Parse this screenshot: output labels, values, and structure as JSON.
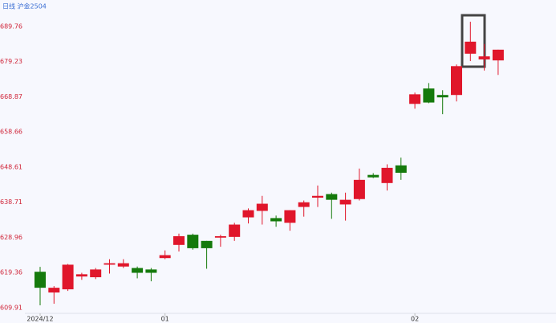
{
  "chart_data": {
    "type": "candlestick",
    "title": "日线 沪金2504",
    "categories": [
      "2024/12",
      null,
      null,
      null,
      null,
      null,
      null,
      null,
      null,
      "01",
      null,
      null,
      null,
      null,
      null,
      null,
      null,
      null,
      null,
      null,
      null,
      null,
      null,
      null,
      null,
      null,
      null,
      "02",
      null,
      null,
      null,
      null,
      null,
      null
    ],
    "open": [
      619.58,
      613.99,
      614.84,
      618.3,
      618.1,
      621.5,
      621.0,
      620.6,
      620.2,
      623.3,
      626.9,
      629.7,
      628.0,
      628.9,
      629.1,
      634.5,
      636.3,
      634.3,
      633.0,
      637.4,
      640.0,
      641.0,
      638.1,
      639.6,
      646.4,
      644.1,
      649.1,
      666.8,
      671.3,
      669.4,
      669.4,
      681.6,
      679.9,
      679.6
    ],
    "high": [
      620.9,
      615.7,
      621.7,
      619.3,
      620.6,
      623.0,
      623.0,
      621.0,
      620.6,
      625.4,
      630.0,
      630.0,
      628.0,
      629.7,
      633.0,
      637.0,
      640.5,
      635.0,
      636.5,
      639.2,
      643.4,
      641.4,
      641.4,
      648.2,
      646.9,
      649.4,
      651.3,
      670.1,
      672.9,
      670.8,
      678.4,
      691.2,
      684.5,
      682.8
    ],
    "low": [
      610.55,
      610.98,
      614.4,
      617.4,
      617.6,
      619.1,
      620.6,
      617.8,
      617.0,
      623.0,
      625.1,
      625.6,
      620.4,
      626.4,
      628.0,
      632.8,
      632.5,
      631.9,
      630.8,
      634.7,
      637.4,
      634.1,
      633.6,
      639.2,
      645.5,
      642.0,
      645.0,
      665.4,
      667.0,
      663.8,
      667.5,
      679.4,
      676.6,
      675.3
    ],
    "close": [
      615.26,
      615.26,
      621.5,
      618.9,
      620.2,
      621.9,
      621.9,
      619.3,
      619.3,
      624.1,
      629.3,
      626.0,
      626.0,
      629.3,
      632.5,
      636.5,
      638.3,
      633.4,
      636.5,
      638.7,
      640.5,
      639.4,
      639.4,
      645.0,
      645.7,
      648.4,
      647.0,
      669.6,
      667.2,
      668.7,
      677.9,
      685.2,
      680.8,
      682.8
    ],
    "up_color": "#e0162b",
    "down_color": "#157a0c",
    "log": true,
    "ylim": [
      606.7,
      693.4
    ],
    "yticks": [
      609.91,
      619.36,
      628.96,
      638.71,
      648.61,
      658.66,
      668.87,
      679.23,
      689.76
    ],
    "grid": false
  }
}
